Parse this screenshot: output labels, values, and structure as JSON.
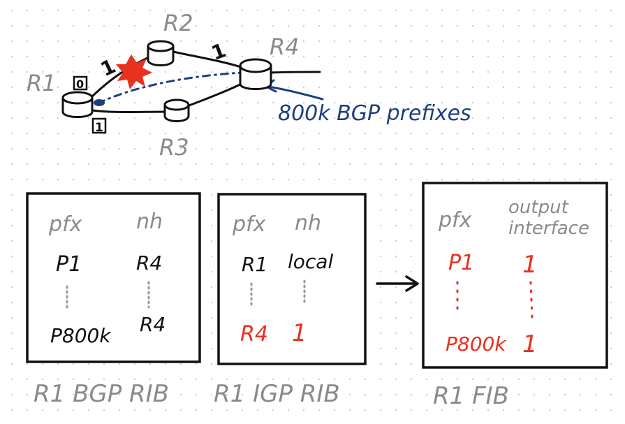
{
  "topology": {
    "routers": {
      "r1": "R1",
      "r2": "R2",
      "r3": "R3",
      "r4": "R4"
    },
    "interfaces": {
      "r1_top": "0",
      "r1_bottom": "1"
    },
    "link_weights": {
      "r1_r2": "1",
      "r2_r4": "1"
    },
    "failure_marker": "link failure",
    "bgp_annotation": "800k BGP prefixes"
  },
  "tables": {
    "bgp_rib": {
      "header_pfx": "pfx",
      "header_nh": "nh",
      "row1_pfx": "P1",
      "row1_nh": "R4",
      "row_last_pfx": "P800k",
      "row_last_nh": "R4",
      "caption": "R1  BGP RIB"
    },
    "igp_rib": {
      "header_pfx": "pfx",
      "header_nh": "nh",
      "row1_pfx": "R1",
      "row1_nh": "local",
      "row_last_pfx": "R4",
      "row_last_nh": "1",
      "caption": "R1  IGP RIB"
    },
    "fib": {
      "header_pfx": "pfx",
      "header_out1": "output",
      "header_out2": "interface",
      "row1_pfx": "P1",
      "row1_out": "1",
      "row_last_pfx": "P800k",
      "row_last_out": "1",
      "caption": "R1  FIB"
    }
  },
  "colors": {
    "ink": "#111111",
    "gray": "#8a8a8a",
    "red": "#e8311f",
    "blue": "#1d3f80"
  }
}
